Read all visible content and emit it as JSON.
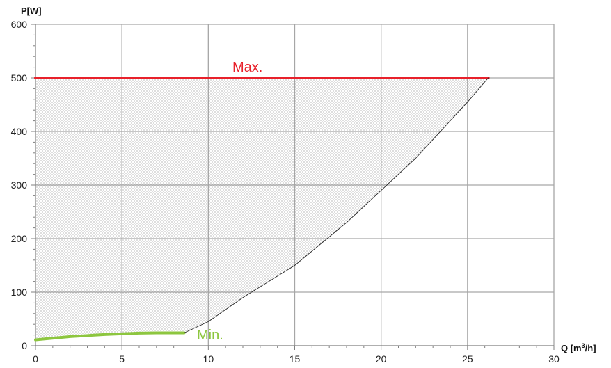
{
  "chart_data": {
    "type": "area",
    "title": "",
    "ylabel": "P[W]",
    "xlabel": "Q [m",
    "xlabel_sup": "3",
    "xlabel_tail": "/h]",
    "xlim": [
      0,
      30
    ],
    "ylim": [
      0,
      600
    ],
    "xticks": [
      "0",
      "5",
      "10",
      "15",
      "20",
      "25",
      "30"
    ],
    "yticks": [
      "0",
      "100",
      "200",
      "300",
      "400",
      "500",
      "600"
    ],
    "grid": true,
    "shaded_region": "dotted",
    "series": [
      {
        "name": "Max.",
        "color": "#e8212b",
        "x": [
          0,
          26.2
        ],
        "y": [
          500,
          500
        ]
      },
      {
        "name": "Min.",
        "color": "#8dc63f",
        "x": [
          0,
          2,
          4,
          6,
          7,
          8.6
        ],
        "y": [
          11,
          17,
          21,
          23.5,
          24,
          24
        ]
      },
      {
        "name": "",
        "color": "#222222",
        "x": [
          8.6,
          10,
          12,
          15,
          18,
          20,
          22,
          24,
          25,
          26.2
        ],
        "y": [
          24,
          45,
          90,
          150,
          230,
          290,
          350,
          420,
          455,
          500
        ]
      }
    ]
  }
}
